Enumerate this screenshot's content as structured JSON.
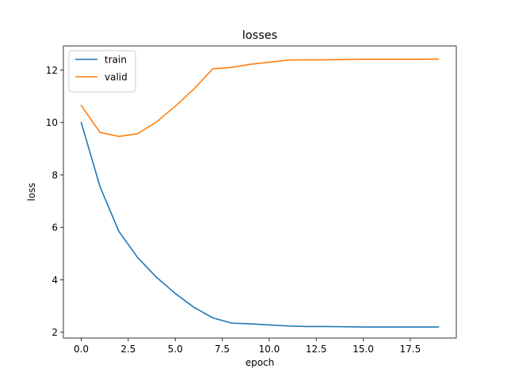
{
  "chart_data": {
    "type": "line",
    "title": "losses",
    "xlabel": "epoch",
    "ylabel": "loss",
    "xlim": [
      -0.95,
      19.95
    ],
    "ylim": [
      1.78,
      12.92
    ],
    "xticks": [
      0.0,
      2.5,
      5.0,
      7.5,
      10.0,
      12.5,
      15.0,
      17.5
    ],
    "xtick_labels": [
      "0.0",
      "2.5",
      "5.0",
      "7.5",
      "10.0",
      "12.5",
      "15.0",
      "17.5"
    ],
    "yticks": [
      2,
      4,
      6,
      8,
      10,
      12
    ],
    "ytick_labels": [
      "2",
      "4",
      "6",
      "8",
      "10",
      "12"
    ],
    "grid": false,
    "legend": "upper-left",
    "x": [
      0,
      1,
      2,
      3,
      4,
      5,
      6,
      7,
      8,
      9,
      10,
      11,
      12,
      13,
      14,
      15,
      16,
      17,
      18,
      19
    ],
    "series": [
      {
        "name": "train",
        "color": "#1f77b4",
        "values": [
          10.0,
          7.55,
          5.85,
          4.85,
          4.1,
          3.48,
          2.95,
          2.55,
          2.35,
          2.32,
          2.28,
          2.24,
          2.22,
          2.22,
          2.21,
          2.2,
          2.2,
          2.2,
          2.2,
          2.2
        ]
      },
      {
        "name": "valid",
        "color": "#ff7f0e",
        "values": [
          10.65,
          9.62,
          9.47,
          9.57,
          10.02,
          10.62,
          11.28,
          12.05,
          12.1,
          12.22,
          12.3,
          12.38,
          12.39,
          12.39,
          12.4,
          12.41,
          12.41,
          12.41,
          12.41,
          12.42
        ]
      }
    ]
  }
}
